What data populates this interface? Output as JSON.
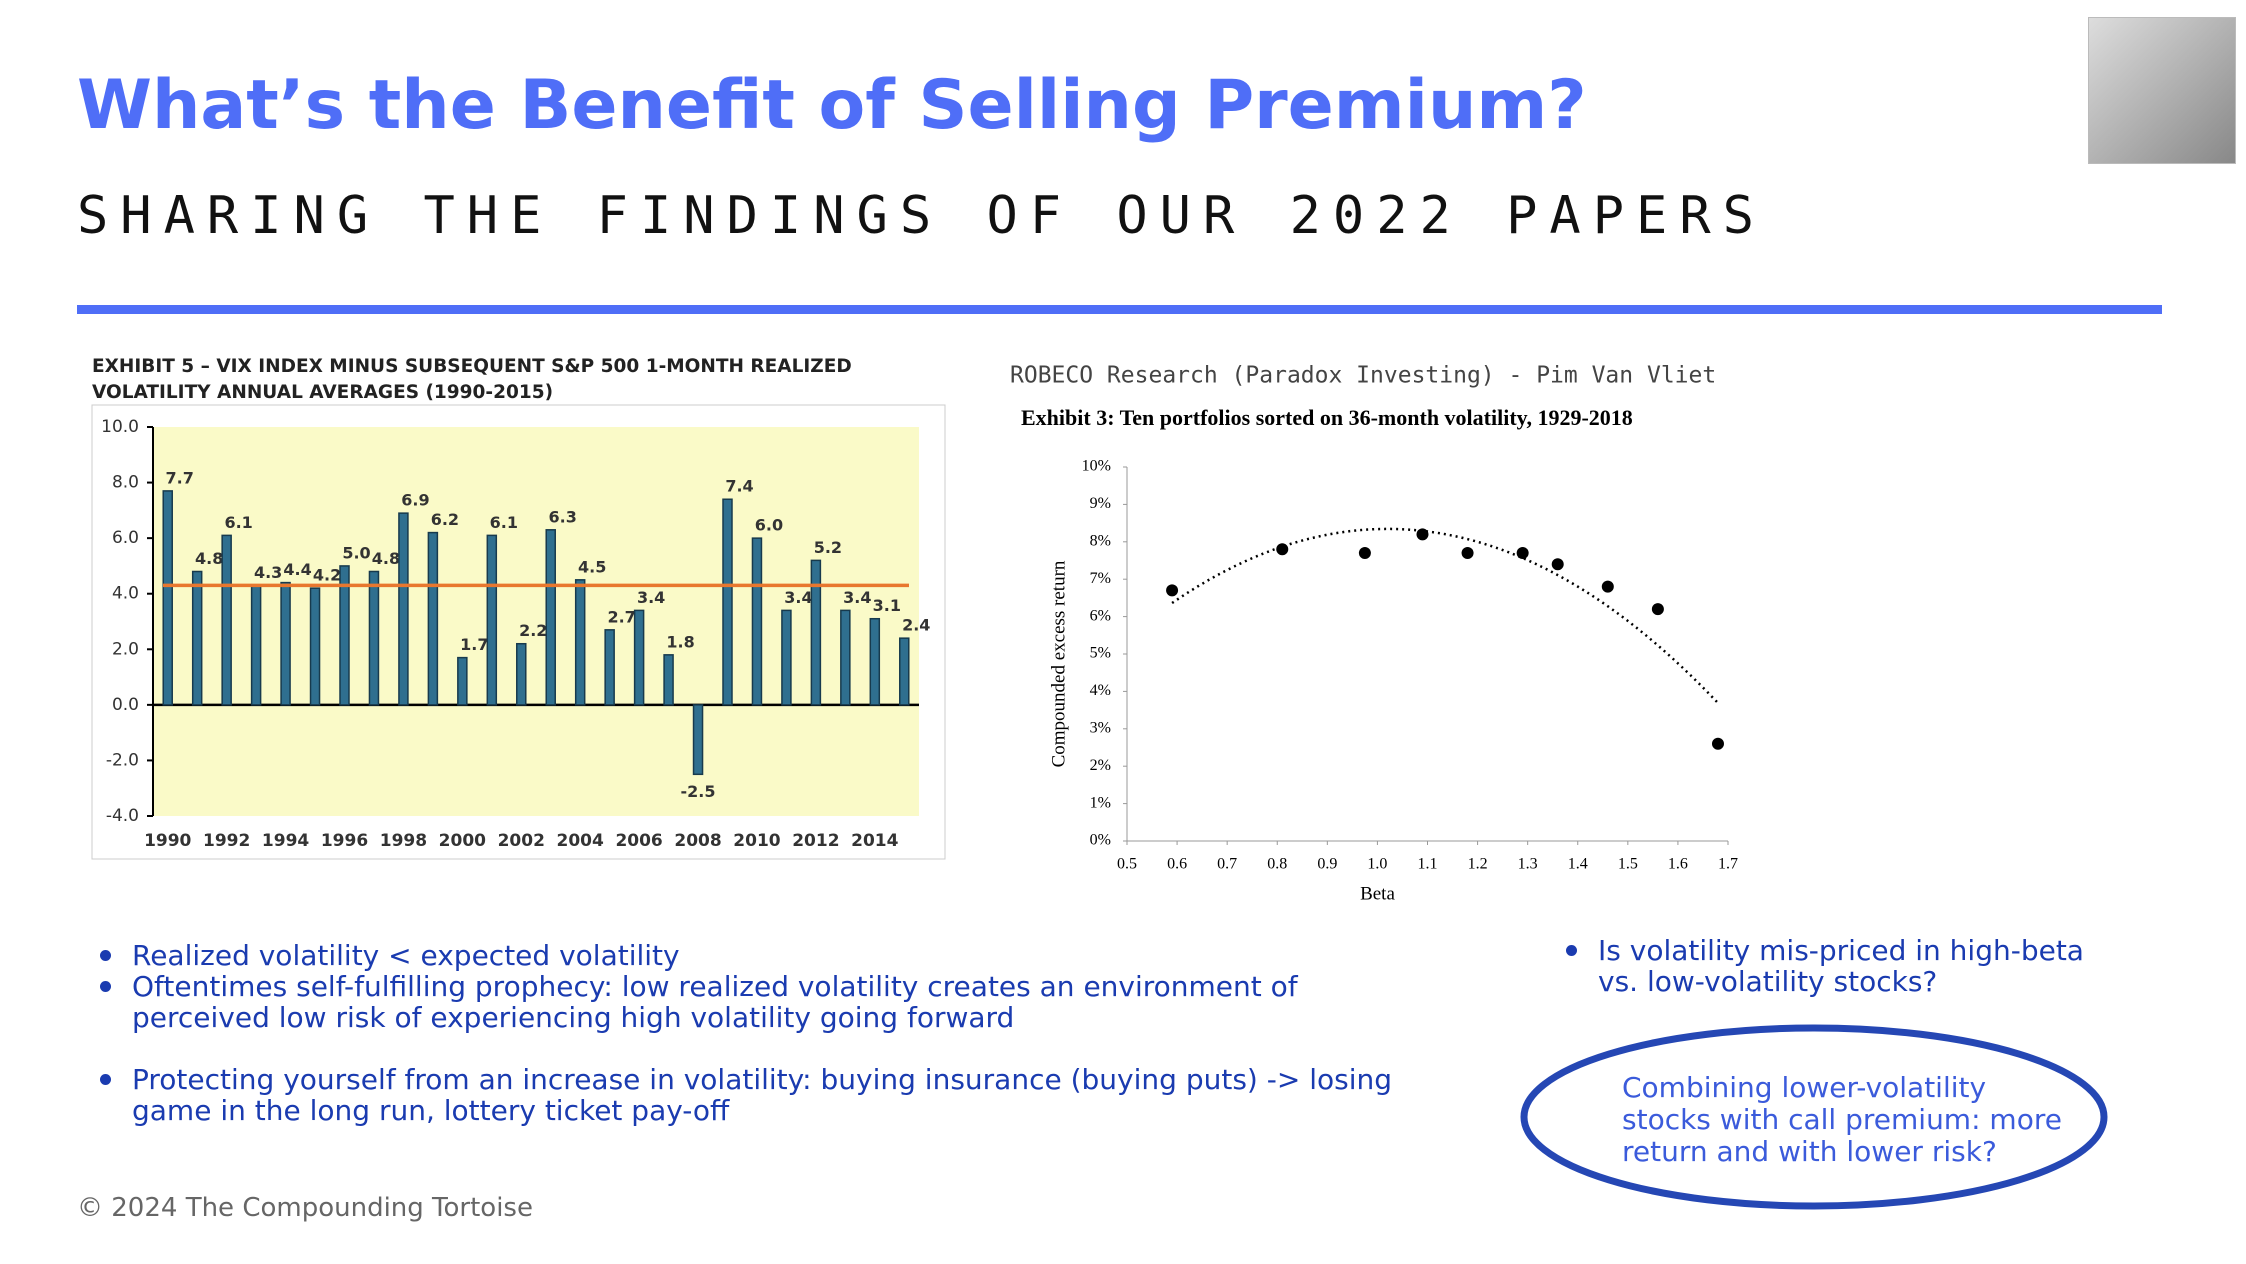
{
  "header": {
    "title": "What’s the Benefit of Selling Premium?",
    "subtitle": "SHARING THE FINDINGS OF OUR 2022 PAPERS"
  },
  "chart_data": [
    {
      "type": "bar",
      "title": "EXHIBIT 5 – VIX INDEX MINUS SUBSEQUENT S&P 500 1-MONTH REALIZED VOLATILITY ANNUAL AVERAGES (1990-2015)",
      "categories": [
        "1990",
        null,
        "1992",
        null,
        "1994",
        null,
        "1996",
        null,
        "1998",
        null,
        "2000",
        null,
        "2002",
        null,
        "2004",
        null,
        "2006",
        null,
        "2008",
        null,
        "2010",
        null,
        "2012",
        null,
        "2014",
        null
      ],
      "values": [
        7.7,
        4.8,
        6.1,
        4.3,
        4.4,
        4.2,
        5.0,
        4.8,
        6.9,
        6.2,
        1.7,
        6.1,
        2.2,
        6.3,
        4.5,
        2.7,
        3.4,
        1.8,
        -2.5,
        7.4,
        6.0,
        3.4,
        5.2,
        3.4,
        3.1,
        2.4
      ],
      "value_labels": [
        "7.7",
        "4.8",
        "6.1",
        "4.3",
        "4.4",
        "4.2",
        "5.0",
        "4.8",
        "6.9",
        "6.2",
        "1.7",
        "6.1",
        "2.2",
        "6.3",
        "4.5",
        "2.7",
        "3.4",
        "1.8",
        "-2.5",
        "7.4",
        "6.0",
        "3.4",
        "5.2",
        "3.4",
        "3.1",
        "2.4"
      ],
      "color": "#2f6f8f",
      "ylim": [
        -4,
        10
      ],
      "yticks": [
        {
          "value": -4,
          "label": "-4.0"
        },
        {
          "value": -2,
          "label": "-2.0"
        },
        {
          "value": 0,
          "label": "0.0"
        },
        {
          "value": 2,
          "label": "2.0"
        },
        {
          "value": 4,
          "label": "4.0"
        },
        {
          "value": 6,
          "label": "6.0"
        },
        {
          "value": 8,
          "label": "8.0"
        },
        {
          "value": 10,
          "label": "10.0"
        }
      ],
      "average_line": 4.3,
      "average_color": "#e8772e",
      "background": "#fafac8"
    },
    {
      "type": "scatter",
      "source": "ROBECO Research (Paradox Investing) - Pim Van Vliet",
      "title": "Exhibit 3: Ten portfolios sorted on 36-month volatility, 1929-2018",
      "x_label": "Beta",
      "y_label": "Compounded excess return",
      "x": [
        0.59,
        0.81,
        0.975,
        1.09,
        1.18,
        1.29,
        1.36,
        1.46,
        1.56,
        1.68
      ],
      "values": [
        6.7,
        7.8,
        7.7,
        8.2,
        7.7,
        7.7,
        7.4,
        6.8,
        6.2,
        2.6
      ],
      "color": "#000000",
      "trendline": "quadratic",
      "xlim": [
        0.5,
        1.7
      ],
      "xticks": [
        0.5,
        0.6,
        0.7,
        0.8,
        0.9,
        {
          "value": 1,
          "label": "1.0"
        },
        1.1,
        1.2,
        1.3,
        1.4,
        1.5,
        1.6,
        1.7
      ],
      "ylim": [
        0,
        10
      ],
      "yticks": [
        {
          "value": 0,
          "label": "0%"
        },
        {
          "value": 1,
          "label": "1%"
        },
        {
          "value": 2,
          "label": "2%"
        },
        {
          "value": 3,
          "label": "3%"
        },
        {
          "value": 4,
          "label": "4%"
        },
        {
          "value": 5,
          "label": "5%"
        },
        {
          "value": 6,
          "label": "6%"
        },
        {
          "value": 7,
          "label": "7%"
        },
        {
          "value": 8,
          "label": "8%"
        },
        {
          "value": 9,
          "label": "9%"
        },
        {
          "value": 10,
          "label": "10%"
        }
      ]
    }
  ],
  "bullets_left": [
    "Realized volatility < expected volatility",
    "Oftentimes self-fulfilling prophecy: low realized volatility creates an environment of perceived low risk of experiencing high volatility going forward",
    "Protecting yourself from an increase in volatility: buying insurance (buying puts) -> losing game in the long run, lottery ticket pay-off"
  ],
  "bullets_right": [
    "Is volatility mis-priced in high-beta vs. low-volatility stocks?"
  ],
  "callout": "Combining lower-volatility stocks with call premium: more return and with lower risk?",
  "footer": "© 2024 The Compounding Tortoise"
}
